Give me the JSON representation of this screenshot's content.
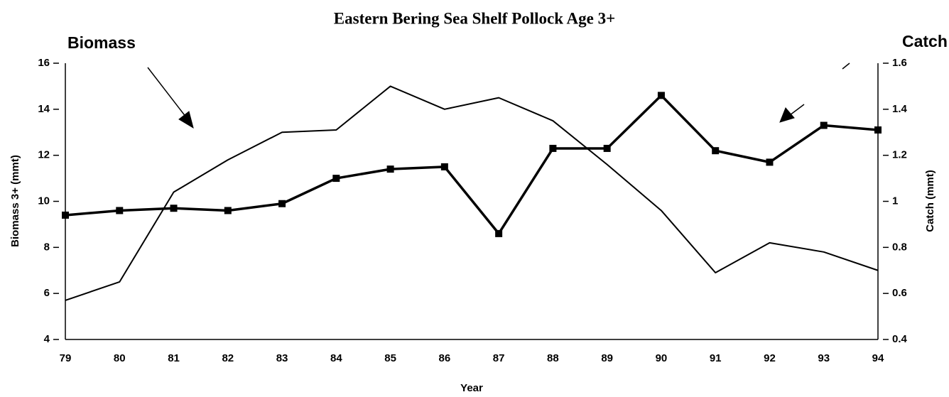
{
  "chart_data": {
    "type": "line",
    "title": "Eastern Bering Sea Shelf Pollock Age 3+",
    "x_label": "Year",
    "y_label": "Biomass 3+ (mmt)",
    "y2_label": "Catch (mmt)",
    "categories": [
      "79",
      "80",
      "81",
      "82",
      "83",
      "84",
      "85",
      "86",
      "87",
      "88",
      "89",
      "90",
      "91",
      "92",
      "93",
      "94"
    ],
    "series": [
      {
        "name": "Biomass",
        "color": "#000000",
        "marker": false,
        "axis": "y",
        "values": [
          5.7,
          6.5,
          10.4,
          11.8,
          13.0,
          13.1,
          15.0,
          14.0,
          14.5,
          13.5,
          11.6,
          9.6,
          6.9,
          8.2,
          7.8,
          7.0
        ]
      },
      {
        "name": "Catch",
        "color": "#000000",
        "marker": true,
        "axis": "y2",
        "values": [
          0.94,
          0.96,
          0.97,
          0.96,
          0.99,
          1.1,
          1.14,
          1.15,
          0.86,
          1.23,
          1.23,
          1.46,
          1.22,
          1.17,
          1.33,
          1.31
        ]
      }
    ],
    "ylim": [
      4,
      16
    ],
    "yticks": [
      4,
      6,
      8,
      10,
      12,
      14,
      16
    ],
    "y2lim": [
      0.4,
      1.6
    ],
    "y2ticks": [
      0.4,
      0.6,
      0.8,
      1.0,
      1.2,
      1.4,
      1.6
    ],
    "grid": false
  }
}
